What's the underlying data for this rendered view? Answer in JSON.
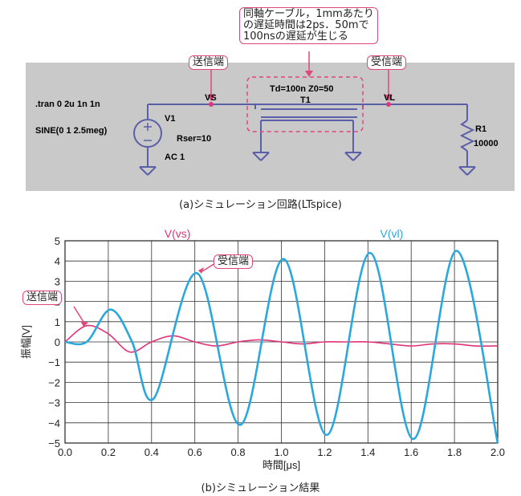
{
  "circuit": {
    "directive": ".tran 0 2u 1n 1n",
    "source_name": "V1",
    "source_func": "SINE(0 1 2.5meg)",
    "source_rser": "Rser=10",
    "source_ac": "AC 1",
    "node_vs": "VS",
    "node_vl": "VL",
    "tline_params": "Td=100n Z0=50",
    "tline_name": "T1",
    "load_name": "R1",
    "load_value": "10000",
    "callout_line1": "同軸ケーブル，1mmあたり",
    "callout_line2": "の遅延時間は2ps．50mで",
    "callout_line3": "100nsの遅延が生じる",
    "label_send": "送信端",
    "label_recv": "受信端",
    "caption": "(a)シミュレーション回路(LTspice)"
  },
  "plot": {
    "caption": "(b)シミュレーション結果",
    "label_send": "送信端",
    "label_recv": "受信端",
    "colors": {
      "vs": "#e0337a",
      "vl": "#2aa7dc"
    }
  },
  "chart_data": {
    "type": "line",
    "xlabel": "時間[μs]",
    "ylabel": "振幅[V]",
    "xlim": [
      0.0,
      2.0
    ],
    "ylim": [
      -5,
      5
    ],
    "xticks": [
      "0.0",
      "0.2",
      "0.4",
      "0.6",
      "0.8",
      "1.0",
      "1.2",
      "1.4",
      "1.6",
      "1.8",
      "2.0"
    ],
    "yticks": [
      "5",
      "4",
      "3",
      "2",
      "1",
      "0",
      "−1",
      "−2",
      "−3",
      "−4",
      "−5"
    ],
    "grid": true,
    "series": [
      {
        "name": "V(vs)",
        "x": [
          0.0,
          0.1,
          0.2,
          0.3,
          0.4,
          0.5,
          0.6,
          0.7,
          0.8,
          0.9,
          1.0,
          1.1,
          1.2,
          1.3,
          1.4,
          1.5,
          1.6,
          1.7,
          1.8,
          1.9,
          2.0
        ],
        "y": [
          0.0,
          0.8,
          0.4,
          -0.5,
          0.0,
          0.3,
          0.0,
          -0.2,
          0.0,
          0.1,
          0.0,
          -0.1,
          0.0,
          0.0,
          0.0,
          -0.1,
          -0.2,
          -0.1,
          -0.1,
          -0.2,
          -0.2
        ]
      },
      {
        "name": "V(vl)",
        "x": [
          0.0,
          0.1,
          0.21,
          0.31,
          0.41,
          0.61,
          0.81,
          1.01,
          1.21,
          1.41,
          1.61,
          1.81,
          2.0
        ],
        "y": [
          0.0,
          0.0,
          1.6,
          0.0,
          -2.8,
          3.4,
          -4.1,
          4.1,
          -4.6,
          4.4,
          -4.8,
          4.5,
          -5.0
        ]
      }
    ]
  }
}
